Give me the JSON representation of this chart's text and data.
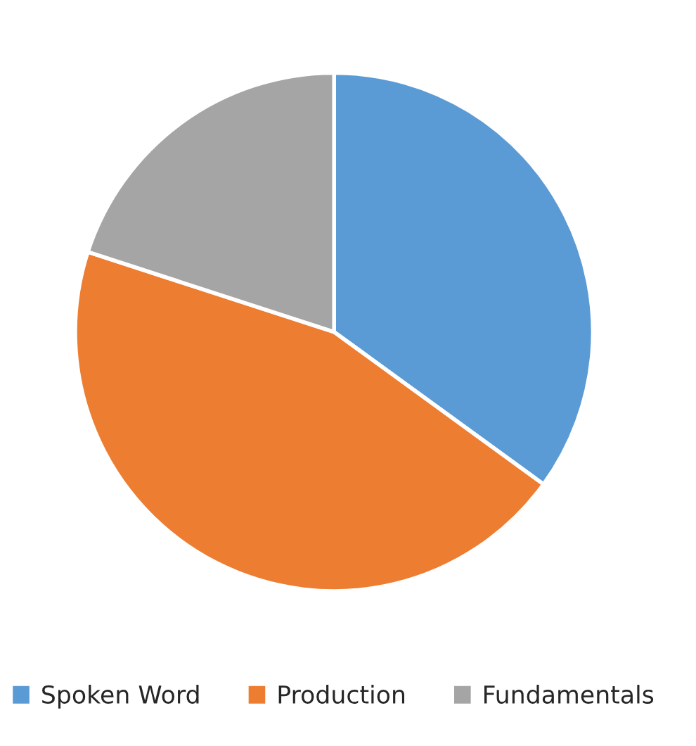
{
  "chart_data": {
    "type": "pie",
    "categories": [
      "Spoken Word",
      "Production",
      "Fundamentals"
    ],
    "values": [
      35,
      45,
      20
    ],
    "colors": [
      "#5b9bd5",
      "#ed7d31",
      "#a5a5a5"
    ],
    "legend": "bottom"
  }
}
